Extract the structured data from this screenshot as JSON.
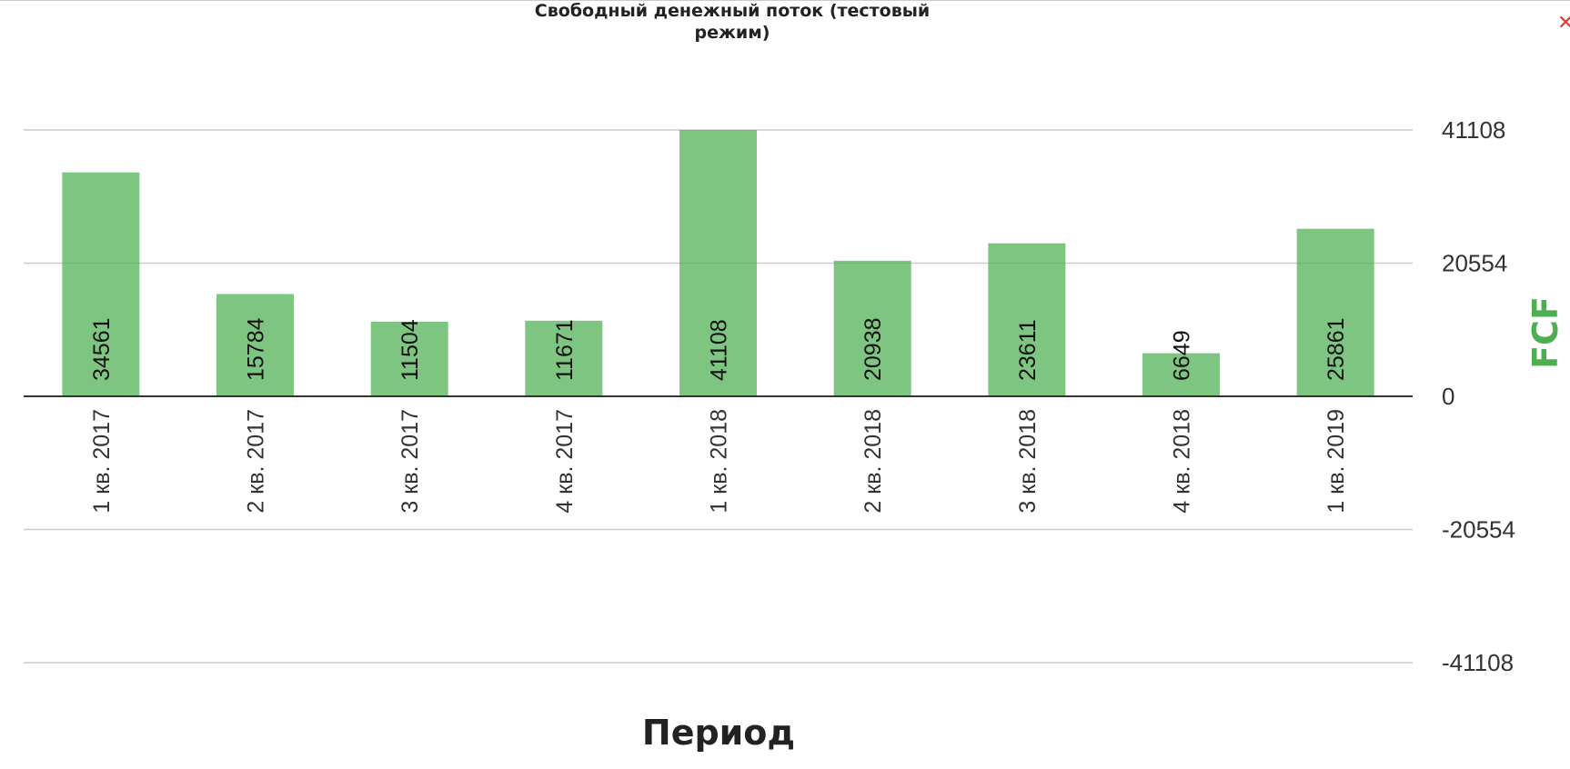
{
  "header": {
    "close_symbol": "✕",
    "close_icon": "close-icon"
  },
  "colors": {
    "bar": "#4caf50",
    "axis_label": "#4caf50",
    "close": "#e53935"
  },
  "chart_data": {
    "type": "bar",
    "title": "Свободный денежный поток (тестовый режим)",
    "xlabel": "Период",
    "ylabel": "FCF",
    "categories": [
      "1 кв. 2017",
      "2 кв. 2017",
      "3 кв. 2017",
      "4 кв. 2017",
      "1 кв. 2018",
      "2 кв. 2018",
      "3 кв. 2018",
      "4 кв. 2018",
      "1 кв. 2019"
    ],
    "values": [
      34561,
      15784,
      11504,
      11671,
      41108,
      20938,
      23611,
      6649,
      25861
    ],
    "value_labels": [
      "34561",
      "15784",
      "11504",
      "11671",
      "41108",
      "20938",
      "23611",
      "6649",
      "25861"
    ],
    "y_ticks": [
      41108,
      20554,
      0,
      -20554,
      -41108
    ],
    "y_tick_labels": [
      "41108",
      "20554",
      "0",
      "-20554",
      "-41108"
    ],
    "ylim": [
      -41108,
      41108
    ],
    "y_axis_position": "right",
    "grid": true,
    "legend": "none"
  }
}
